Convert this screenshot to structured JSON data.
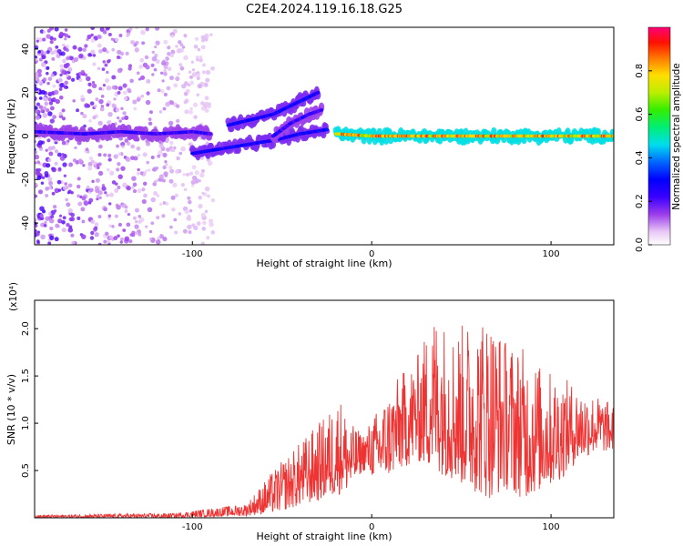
{
  "title": "C2E4.2024.119.16.18.G25",
  "chart_data": [
    {
      "type": "heatmap",
      "xlabel": "Height of straight line (km)",
      "ylabel": "Frequency (Hz)",
      "xlim": [
        -188,
        135
      ],
      "ylim": [
        -50,
        50
      ],
      "x_ticks": [
        -100,
        0,
        100
      ],
      "x_tick_labels": [
        "-100",
        "0",
        "100"
      ],
      "y_ticks": [
        -40,
        -20,
        0,
        20,
        40
      ],
      "y_tick_labels": [
        "-40",
        "-20",
        "0",
        "20",
        "40"
      ],
      "colorbar": {
        "label": "Normalized spectral amplitude",
        "range": [
          0,
          1
        ],
        "ticks": [
          0.0,
          0.2,
          0.4,
          0.6,
          0.8
        ],
        "tick_labels": [
          "0.0",
          "0.2",
          "0.4",
          "0.6",
          "0.8"
        ]
      },
      "tracks": [
        {
          "x": [
            -188,
            -160,
            -140,
            -120,
            -100,
            -90
          ],
          "y": [
            2,
            1,
            2,
            1,
            2,
            1
          ],
          "amplitude": 0.25
        },
        {
          "x": [
            -100,
            -85,
            -70,
            -55,
            -40,
            -25
          ],
          "y": [
            -8,
            -6,
            -4,
            -2,
            1,
            3
          ],
          "amplitude": 0.3
        },
        {
          "x": [
            -80,
            -65,
            -55,
            -45,
            -35,
            -30
          ],
          "y": [
            5,
            8,
            10,
            14,
            18,
            20
          ],
          "amplitude": 0.3
        },
        {
          "x": [
            -55,
            -45,
            -35,
            -28
          ],
          "y": [
            0,
            6,
            10,
            12
          ],
          "amplitude": 0.25
        },
        {
          "x": [
            -20,
            0,
            40,
            80,
            135
          ],
          "y": [
            1,
            0,
            0,
            0,
            0
          ],
          "amplitude": 0.85
        }
      ],
      "grid": false
    },
    {
      "type": "line",
      "xlabel": "Height of straight line (km)",
      "ylabel": "SNR (10 * v/v)",
      "y_multiplier": "(x10⁴)",
      "xlim": [
        -188,
        135
      ],
      "ylim": [
        0,
        2.3
      ],
      "x_ticks": [
        -100,
        0,
        100
      ],
      "x_tick_labels": [
        "-100",
        "0",
        "100"
      ],
      "y_ticks": [
        0.5,
        1.0,
        1.5,
        2.0
      ],
      "y_tick_labels": [
        "0.5",
        "1.0",
        "1.5",
        "2.0"
      ],
      "color": "#ee3333",
      "envelope": {
        "x": [
          -188,
          -150,
          -110,
          -90,
          -70,
          -55,
          -45,
          -35,
          -25,
          -18,
          -12,
          -5,
          5,
          15,
          25,
          35,
          45,
          55,
          65,
          75,
          85,
          95,
          105,
          115,
          125,
          135
        ],
        "low": [
          0.0,
          0.0,
          0.0,
          0.01,
          0.02,
          0.05,
          0.1,
          0.15,
          0.2,
          0.25,
          0.3,
          0.5,
          0.4,
          0.5,
          0.6,
          0.5,
          0.4,
          0.3,
          0.2,
          0.3,
          0.2,
          0.3,
          0.4,
          0.6,
          0.7,
          0.7
        ],
        "high": [
          0.03,
          0.04,
          0.05,
          0.1,
          0.15,
          0.5,
          0.7,
          0.9,
          1.1,
          1.3,
          1.0,
          0.9,
          1.2,
          1.5,
          1.7,
          2.2,
          2.0,
          2.1,
          2.2,
          1.9,
          1.8,
          1.6,
          1.5,
          1.4,
          1.3,
          1.2
        ]
      },
      "grid": false
    }
  ]
}
